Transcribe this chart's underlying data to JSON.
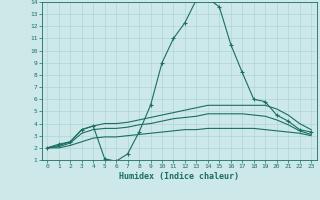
{
  "xlabel": "Humidex (Indice chaleur)",
  "ylabel": "",
  "xlim": [
    -0.5,
    23.5
  ],
  "ylim": [
    1,
    14
  ],
  "yticks": [
    1,
    2,
    3,
    4,
    5,
    6,
    7,
    8,
    9,
    10,
    11,
    12,
    13,
    14
  ],
  "xticks": [
    0,
    1,
    2,
    3,
    4,
    5,
    6,
    7,
    8,
    9,
    10,
    11,
    12,
    13,
    14,
    15,
    16,
    17,
    18,
    19,
    20,
    21,
    22,
    23
  ],
  "bg_color": "#cce8e8",
  "line_color": "#1a6e63",
  "grid_color": "#aad0d0",
  "line1_x": [
    0,
    1,
    2,
    3,
    4,
    5,
    6,
    7,
    8,
    9,
    10,
    11,
    12,
    13,
    14,
    15,
    16,
    17,
    18,
    19,
    20,
    21,
    22,
    23
  ],
  "line1_y": [
    2.0,
    2.3,
    2.5,
    3.5,
    3.8,
    1.1,
    0.9,
    1.5,
    3.3,
    5.5,
    9.0,
    11.0,
    12.3,
    14.2,
    14.3,
    13.6,
    10.5,
    8.2,
    6.0,
    5.8,
    4.7,
    4.2,
    3.5,
    3.3
  ],
  "line2_x": [
    0,
    1,
    2,
    3,
    4,
    5,
    6,
    7,
    8,
    9,
    10,
    11,
    12,
    13,
    14,
    15,
    16,
    17,
    18,
    19,
    20,
    21,
    22,
    23
  ],
  "line2_y": [
    2.0,
    2.2,
    2.5,
    3.5,
    3.8,
    4.0,
    4.0,
    4.1,
    4.3,
    4.5,
    4.7,
    4.9,
    5.1,
    5.3,
    5.5,
    5.5,
    5.5,
    5.5,
    5.5,
    5.5,
    5.2,
    4.7,
    4.0,
    3.5
  ],
  "line3_x": [
    0,
    1,
    2,
    3,
    4,
    5,
    6,
    7,
    8,
    9,
    10,
    11,
    12,
    13,
    14,
    15,
    16,
    17,
    18,
    19,
    20,
    21,
    22,
    23
  ],
  "line3_y": [
    2.0,
    2.1,
    2.4,
    3.2,
    3.5,
    3.6,
    3.6,
    3.7,
    3.9,
    4.0,
    4.2,
    4.4,
    4.5,
    4.6,
    4.8,
    4.8,
    4.8,
    4.8,
    4.7,
    4.6,
    4.3,
    3.9,
    3.4,
    3.1
  ],
  "line4_x": [
    0,
    1,
    2,
    3,
    4,
    5,
    6,
    7,
    8,
    9,
    10,
    11,
    12,
    13,
    14,
    15,
    16,
    17,
    18,
    19,
    20,
    21,
    22,
    23
  ],
  "line4_y": [
    2.0,
    2.0,
    2.2,
    2.5,
    2.8,
    2.9,
    2.9,
    3.0,
    3.1,
    3.2,
    3.3,
    3.4,
    3.5,
    3.5,
    3.6,
    3.6,
    3.6,
    3.6,
    3.6,
    3.5,
    3.4,
    3.3,
    3.2,
    3.0
  ]
}
